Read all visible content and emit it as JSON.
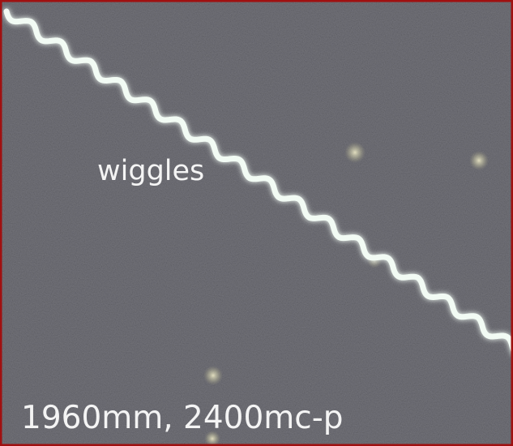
{
  "annotations": {
    "label": "wiggles",
    "caption": "1960mm, 2400mc-p"
  }
}
